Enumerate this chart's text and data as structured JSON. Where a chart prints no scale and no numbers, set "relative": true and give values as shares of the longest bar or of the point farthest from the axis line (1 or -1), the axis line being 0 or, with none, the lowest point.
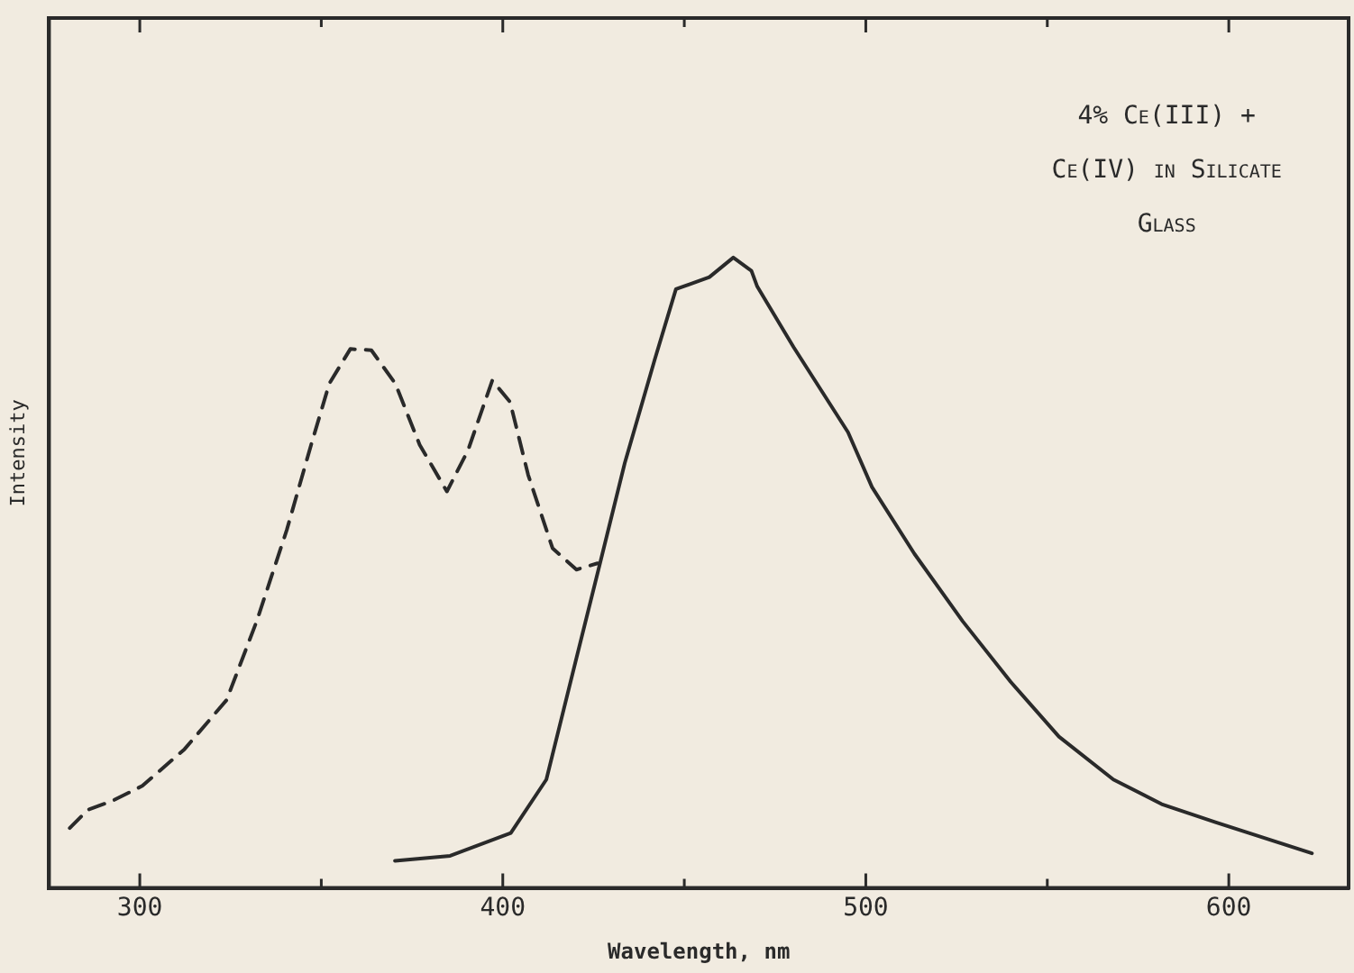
{
  "chart_data": {
    "type": "line",
    "relative": true,
    "xlabel": "Wavelength, nm",
    "ylabel": "Intensity",
    "annotations": [
      "4% Ce(III) + Ce(IV) in Silicate Glass"
    ],
    "xlim": [
      275,
      633
    ],
    "xticks": [
      300,
      {
        "value": 350,
        "label": null
      },
      400,
      {
        "value": 450,
        "label": null
      },
      500,
      {
        "value": 550,
        "label": null
      },
      600
    ],
    "grid": false,
    "legend": false,
    "marker": "none",
    "series": [
      {
        "color": "#2a2a2a",
        "line_style": "dashed",
        "x": [
          280.7,
          285.7,
          292.4,
          300.7,
          312.3,
          323.9,
          332.2,
          340.5,
          347.2,
          352.2,
          358,
          363.8,
          370.4,
          377.1,
          384.6,
          390.4,
          397.1,
          402,
          407,
          413.7,
          420.3,
          426.1
        ],
        "values": [
          0.095,
          0.124,
          0.138,
          0.162,
          0.22,
          0.298,
          0.423,
          0.568,
          0.703,
          0.8,
          0.855,
          0.853,
          0.8,
          0.703,
          0.629,
          0.694,
          0.805,
          0.771,
          0.655,
          0.539,
          0.505,
          0.515
        ]
      },
      {
        "color": "#2a2a2a",
        "line_style": "solid",
        "x": [
          370.3,
          385.5,
          402.2,
          412,
          420.3,
          427,
          433.6,
          441.9,
          447.7,
          456.9,
          463.5,
          468.5,
          470.1,
          480.1,
          495.1,
          501.7,
          513.4,
          526.7,
          539.9,
          553.2,
          568.2,
          581.5,
          596.5,
          622.9
        ],
        "values": [
          0.043,
          0.051,
          0.087,
          0.172,
          0.365,
          0.52,
          0.674,
          0.839,
          0.95,
          0.969,
          1.0,
          0.979,
          0.954,
          0.858,
          0.723,
          0.636,
          0.53,
          0.423,
          0.327,
          0.24,
          0.172,
          0.133,
          0.104,
          0.055
        ]
      }
    ]
  }
}
